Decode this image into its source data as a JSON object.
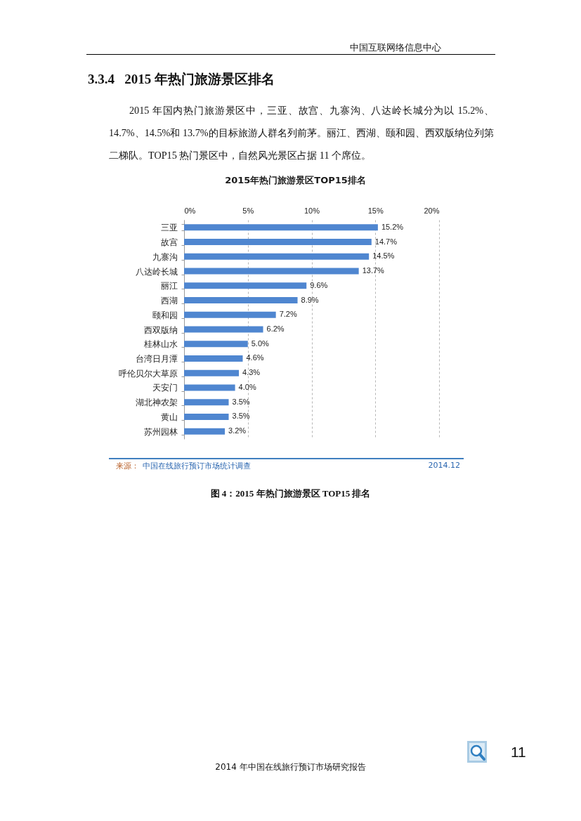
{
  "chart_data": {
    "type": "bar",
    "orientation": "horizontal",
    "title": "2015年热门旅游景区TOP15排名",
    "categories": [
      "三亚",
      "故宫",
      "九寨沟",
      "八达岭长城",
      "丽江",
      "西湖",
      "颐和园",
      "西双版纳",
      "桂林山水",
      "台湾日月潭",
      "呼伦贝尔大草原",
      "天安门",
      "湖北神农架",
      "黄山",
      "苏州园林"
    ],
    "values": [
      15.2,
      14.7,
      14.5,
      13.7,
      9.6,
      8.9,
      7.2,
      6.2,
      5.0,
      4.6,
      4.3,
      4.0,
      3.5,
      3.5,
      3.2
    ],
    "value_labels": [
      "15.2%",
      "14.7%",
      "14.5%",
      "13.7%",
      "9.6%",
      "8.9%",
      "7.2%",
      "6.2%",
      "5.0%",
      "4.6%",
      "4.3%",
      "4.0%",
      "3.5%",
      "3.5%",
      "3.2%"
    ],
    "color": "#4f86d0",
    "xlim": [
      0,
      20
    ],
    "xticks": [
      {
        "value": 0,
        "label": "0%"
      },
      {
        "value": 5,
        "label": "5%"
      },
      {
        "value": 10,
        "label": "10%"
      },
      {
        "value": 15,
        "label": "15%"
      },
      {
        "value": 20,
        "label": "20%"
      }
    ],
    "grid": "x",
    "annotations": [
      "中国互联网络信息中心",
      "3.3.4   2015 年热门旅游景区排名",
      "2015 年国内热门旅游景区中，三亚、故宫、九寨沟、八达岭长城分为以 15.2%、14.7%、14.5%和 13.7%的目标旅游人群名列前茅。丽江、西湖、颐和园、西双版纳位列第二梯队。TOP15 热门景区中，自然风光景区占据 11 个席位。",
      "来源：",
      "中国在线旅行预订市场统计调查",
      "2014.12",
      "图 4：2015 年热门旅游景区 TOP15 排名",
      "11",
      "2014 年中国在线旅行预订市场研究报告"
    ]
  }
}
